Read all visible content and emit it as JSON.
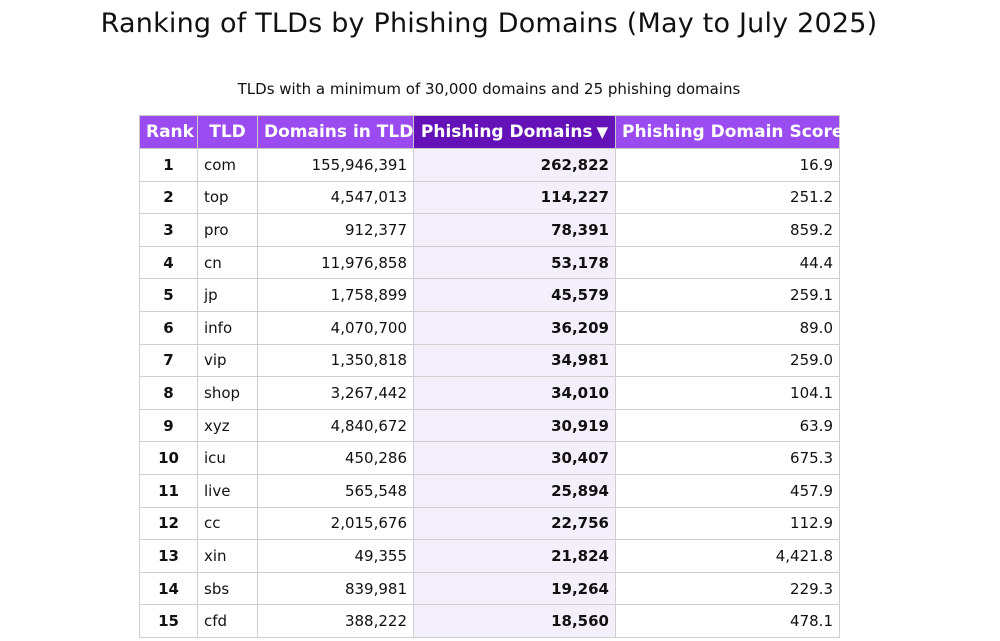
{
  "title": "Ranking of TLDs by Phishing Domains (May to July 2025)",
  "subtitle": "TLDs with a minimum of 30,000 domains and 25 phishing domains",
  "colors": {
    "header": "#9b4cf0",
    "header_sorted": "#6412b8",
    "sorted_column_bg": "#f3f0fb"
  },
  "table": {
    "headers": {
      "rank": "Rank",
      "tld": "TLD",
      "domains": "Domains in TLD",
      "phishing": "Phishing Domains",
      "sort_indicator": "▼",
      "score": "Phishing Domain Score"
    },
    "rows": [
      {
        "rank": "1",
        "tld": "com",
        "domains": "155,946,391",
        "phishing": "262,822",
        "score": "16.9"
      },
      {
        "rank": "2",
        "tld": "top",
        "domains": "4,547,013",
        "phishing": "114,227",
        "score": "251.2"
      },
      {
        "rank": "3",
        "tld": "pro",
        "domains": "912,377",
        "phishing": "78,391",
        "score": "859.2"
      },
      {
        "rank": "4",
        "tld": "cn",
        "domains": "11,976,858",
        "phishing": "53,178",
        "score": "44.4"
      },
      {
        "rank": "5",
        "tld": "jp",
        "domains": "1,758,899",
        "phishing": "45,579",
        "score": "259.1"
      },
      {
        "rank": "6",
        "tld": "info",
        "domains": "4,070,700",
        "phishing": "36,209",
        "score": "89.0"
      },
      {
        "rank": "7",
        "tld": "vip",
        "domains": "1,350,818",
        "phishing": "34,981",
        "score": "259.0"
      },
      {
        "rank": "8",
        "tld": "shop",
        "domains": "3,267,442",
        "phishing": "34,010",
        "score": "104.1"
      },
      {
        "rank": "9",
        "tld": "xyz",
        "domains": "4,840,672",
        "phishing": "30,919",
        "score": "63.9"
      },
      {
        "rank": "10",
        "tld": "icu",
        "domains": "450,286",
        "phishing": "30,407",
        "score": "675.3"
      },
      {
        "rank": "11",
        "tld": "live",
        "domains": "565,548",
        "phishing": "25,894",
        "score": "457.9"
      },
      {
        "rank": "12",
        "tld": "cc",
        "domains": "2,015,676",
        "phishing": "22,756",
        "score": "112.9"
      },
      {
        "rank": "13",
        "tld": "xin",
        "domains": "49,355",
        "phishing": "21,824",
        "score": "4,421.8"
      },
      {
        "rank": "14",
        "tld": "sbs",
        "domains": "839,981",
        "phishing": "19,264",
        "score": "229.3"
      },
      {
        "rank": "15",
        "tld": "cfd",
        "domains": "388,222",
        "phishing": "18,560",
        "score": "478.1"
      }
    ]
  }
}
